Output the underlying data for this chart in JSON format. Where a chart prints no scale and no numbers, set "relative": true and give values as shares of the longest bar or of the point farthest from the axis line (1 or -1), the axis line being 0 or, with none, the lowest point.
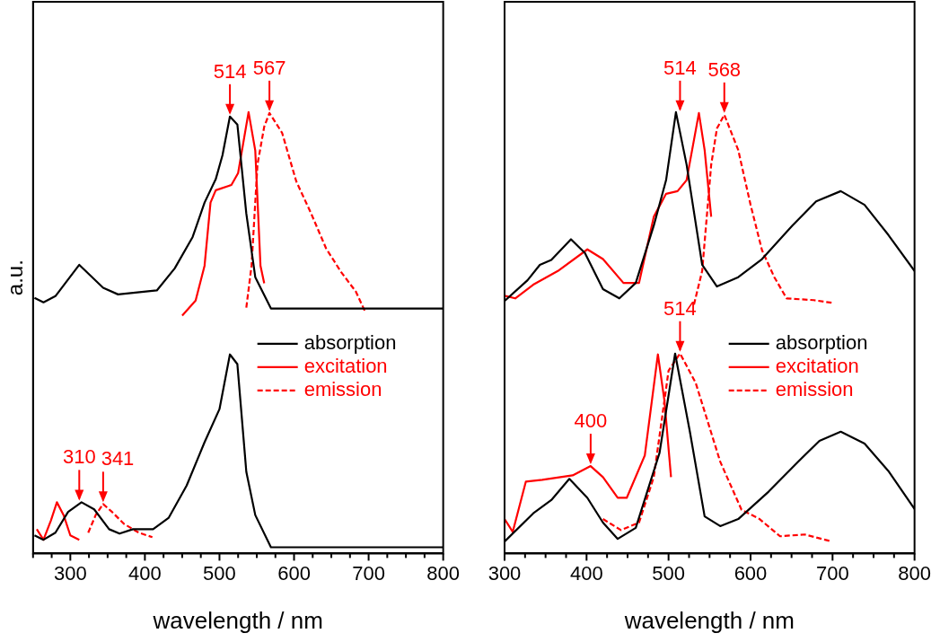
{
  "chart_data": [
    {
      "type": "line",
      "relative": true,
      "xlabel": "wavelength / nm",
      "ylabel": "a.u.",
      "xlim": [
        250,
        800
      ],
      "xticks": [
        {
          "value": 250,
          "label": null
        },
        {
          "value": 275,
          "label": null
        },
        300,
        {
          "value": 325,
          "label": null
        },
        {
          "value": 350,
          "label": null
        },
        {
          "value": 375,
          "label": null
        },
        400,
        {
          "value": 425,
          "label": null
        },
        {
          "value": 450,
          "label": null
        },
        {
          "value": 475,
          "label": null
        },
        500,
        {
          "value": 525,
          "label": null
        },
        {
          "value": 550,
          "label": null
        },
        {
          "value": 575,
          "label": null
        },
        600,
        {
          "value": 625,
          "label": null
        },
        {
          "value": 650,
          "label": null
        },
        {
          "value": 675,
          "label": null
        },
        700,
        {
          "value": 725,
          "label": null
        },
        {
          "value": 750,
          "label": null
        },
        {
          "value": 775,
          "label": null
        },
        800
      ],
      "tick_labels": "x",
      "grid": false,
      "marker": "none",
      "legend": "right",
      "series": [
        {
          "color": "#000000",
          "line_style": "solid",
          "x": [
            252,
            264,
            280,
            312,
            344,
            364,
            416,
            440,
            464,
            480,
            495,
            504,
            514,
            524,
            536,
            548,
            569,
            600,
            700,
            800
          ],
          "values": [
            0.579,
            0.569,
            0.583,
            0.654,
            0.602,
            0.587,
            0.596,
            0.646,
            0.717,
            0.795,
            0.848,
            0.902,
            0.99,
            0.972,
            0.77,
            0.626,
            0.555,
            0.555,
            0.555,
            0.555
          ]
        },
        {
          "color": "#ff0000",
          "line_style": "solid",
          "x": [
            450,
            468,
            480,
            488,
            495,
            516,
            525,
            539,
            548,
            555,
            560
          ],
          "values": [
            0.539,
            0.573,
            0.652,
            0.795,
            0.823,
            0.835,
            0.862,
            1.0,
            0.913,
            0.652,
            0.612
          ]
        },
        {
          "color": "#ff0000",
          "line_style": "dashed",
          "x": [
            536,
            543,
            551,
            560,
            567,
            584,
            603,
            623,
            643,
            663,
            683,
            695
          ],
          "values": [
            0.557,
            0.652,
            0.882,
            0.967,
            0.998,
            0.953,
            0.843,
            0.77,
            0.691,
            0.638,
            0.593,
            0.549
          ]
        },
        {
          "name": "absorption",
          "color": "#000000",
          "line_style": "solid",
          "x": [
            252,
            264,
            280,
            297,
            315,
            332,
            352,
            366,
            384,
            411,
            432,
            456,
            480,
            500,
            514,
            524,
            536,
            548,
            569,
            600,
            700,
            800
          ],
          "values": [
            0.041,
            0.031,
            0.047,
            0.094,
            0.116,
            0.1,
            0.055,
            0.045,
            0.055,
            0.055,
            0.081,
            0.154,
            0.252,
            0.327,
            0.451,
            0.429,
            0.185,
            0.087,
            0.014,
            0.014,
            0.014,
            0.014
          ]
        },
        {
          "name": "excitation",
          "color": "#ff0000",
          "line_style": "solid",
          "x": [
            255,
            264,
            274,
            282,
            291,
            300,
            312
          ],
          "values": [
            0.055,
            0.031,
            0.075,
            0.116,
            0.087,
            0.041,
            0.031
          ]
        },
        {
          "name": "emission",
          "color": "#ff0000",
          "line_style": "dashed",
          "x": [
            324,
            334,
            344,
            356,
            372,
            392,
            410
          ],
          "values": [
            0.047,
            0.087,
            0.112,
            0.094,
            0.067,
            0.047,
            0.037
          ]
        }
      ],
      "annotations": [
        {
          "text": "514",
          "x": 514,
          "y": 0.99
        },
        {
          "text": "567",
          "x": 567,
          "y": 0.998
        },
        {
          "text": "310",
          "x": 312,
          "y": 0.116
        },
        {
          "text": "341",
          "x": 344,
          "y": 0.112
        }
      ]
    },
    {
      "type": "line",
      "relative": true,
      "xlabel": "wavelength / nm",
      "xlim": [
        300,
        800
      ],
      "xticks": [
        300,
        {
          "value": 325,
          "label": null
        },
        {
          "value": 350,
          "label": null
        },
        {
          "value": 375,
          "label": null
        },
        400,
        {
          "value": 425,
          "label": null
        },
        {
          "value": 450,
          "label": null
        },
        {
          "value": 475,
          "label": null
        },
        500,
        {
          "value": 525,
          "label": null
        },
        {
          "value": 550,
          "label": null
        },
        {
          "value": 575,
          "label": null
        },
        600,
        {
          "value": 625,
          "label": null
        },
        {
          "value": 650,
          "label": null
        },
        {
          "value": 675,
          "label": null
        },
        700,
        {
          "value": 725,
          "label": null
        },
        {
          "value": 750,
          "label": null
        },
        {
          "value": 775,
          "label": null
        },
        800
      ],
      "tick_labels": "x",
      "grid": false,
      "marker": "none",
      "legend": "right",
      "series": [
        {
          "color": "#000000",
          "line_style": "solid",
          "x": [
            300,
            328,
            343,
            357,
            381,
            398,
            420,
            440,
            460,
            482,
            497,
            509,
            522,
            541,
            559,
            585,
            614,
            651,
            680,
            710,
            739,
            768,
            800
          ],
          "values": [
            0.572,
            0.619,
            0.654,
            0.665,
            0.712,
            0.681,
            0.599,
            0.578,
            0.613,
            0.743,
            0.846,
            1.0,
            0.881,
            0.654,
            0.605,
            0.626,
            0.667,
            0.743,
            0.798,
            0.821,
            0.79,
            0.722,
            0.64
          ]
        },
        {
          "color": "#ff0000",
          "line_style": "solid",
          "x": [
            300,
            313,
            335,
            365,
            401,
            420,
            445,
            464,
            482,
            497,
            511,
            522,
            537,
            544,
            552
          ],
          "values": [
            0.584,
            0.578,
            0.609,
            0.64,
            0.689,
            0.667,
            0.613,
            0.613,
            0.763,
            0.815,
            0.821,
            0.846,
            0.998,
            0.914,
            0.763
          ]
        },
        {
          "color": "#ff0000",
          "line_style": "dashed",
          "x": [
            531,
            541,
            552,
            559,
            568,
            585,
            600,
            614,
            629,
            644,
            677,
            699
          ],
          "values": [
            0.564,
            0.64,
            0.881,
            0.963,
            0.994,
            0.914,
            0.79,
            0.687,
            0.626,
            0.578,
            0.574,
            0.568
          ]
        },
        {
          "name": "absorption",
          "color": "#000000",
          "line_style": "solid",
          "x": [
            300,
            335,
            357,
            379,
            401,
            420,
            438,
            460,
            489,
            508,
            526,
            544,
            563,
            585,
            622,
            658,
            684,
            710,
            739,
            768,
            800
          ],
          "values": [
            0.027,
            0.091,
            0.121,
            0.169,
            0.126,
            0.07,
            0.033,
            0.058,
            0.228,
            0.453,
            0.276,
            0.084,
            0.062,
            0.078,
            0.14,
            0.208,
            0.255,
            0.276,
            0.249,
            0.187,
            0.101
          ]
        },
        {
          "name": "excitation",
          "color": "#ff0000",
          "line_style": "solid",
          "x": [
            300,
            310,
            326,
            346,
            383,
            405,
            420,
            438,
            449,
            471,
            487,
            495,
            503
          ],
          "values": [
            0.078,
            0.049,
            0.163,
            0.167,
            0.177,
            0.198,
            0.173,
            0.126,
            0.126,
            0.222,
            0.451,
            0.346,
            0.173
          ]
        },
        {
          "name": "emission",
          "color": "#ff0000",
          "line_style": "dashed",
          "x": [
            420,
            442,
            464,
            482,
            500,
            514,
            533,
            563,
            589,
            611,
            636,
            666,
            699
          ],
          "values": [
            0.078,
            0.053,
            0.07,
            0.173,
            0.414,
            0.453,
            0.387,
            0.208,
            0.099,
            0.078,
            0.039,
            0.043,
            0.027
          ]
        }
      ],
      "annotations": [
        {
          "text": "514",
          "x": 514,
          "y": 0.998
        },
        {
          "text": "568",
          "x": 568,
          "y": 0.994
        },
        {
          "text": "400",
          "x": 405,
          "y": 0.198
        },
        {
          "text": "514",
          "x": 514,
          "y": 0.453
        }
      ]
    }
  ]
}
